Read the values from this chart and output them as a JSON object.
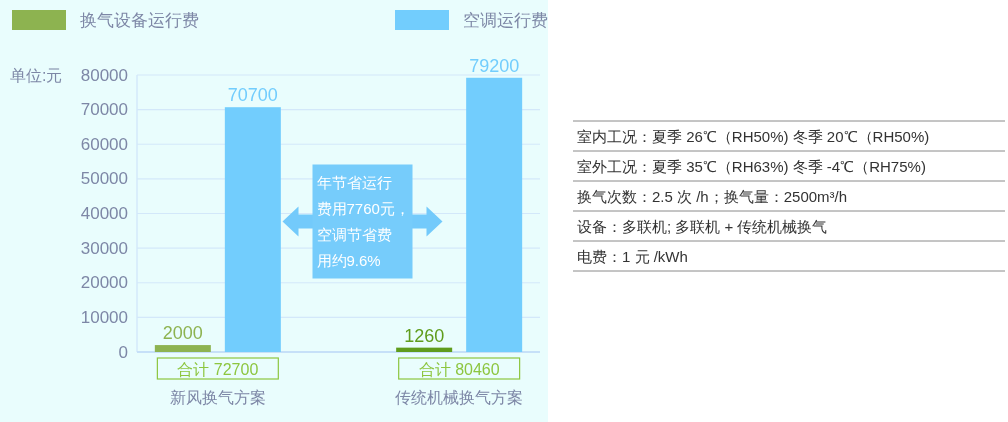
{
  "chart_data": [
    {
      "type": "bar",
      "ylabel": "单位:元",
      "categories": [
        "新风换气方案",
        "传统机械换气方案"
      ],
      "series": [
        {
          "name": "换气设备运行费",
          "color": "#8db350",
          "colors": [
            "#8db350",
            "#5f9c1c"
          ],
          "values": [
            2000,
            1260
          ]
        },
        {
          "name": "空调运行费",
          "color": "#72cdfd",
          "values": [
            70700,
            79200
          ]
        }
      ],
      "ylim": [
        0,
        80000
      ],
      "yticks": [
        0,
        10000,
        20000,
        30000,
        40000,
        50000,
        60000,
        70000,
        80000
      ],
      "grid": "y",
      "legend": "top",
      "data_labels": true,
      "totals": [
        "合计 72700",
        "合计 80460"
      ],
      "annotations": [
        "年节省运行费用7760元，空调节省费用约9.6%"
      ]
    },
    {
      "type": "other",
      "annotations": [
        "室内工况：夏季 26℃（RH50%) 冬季 20℃（RH50%)",
        "室外工况：夏季 35℃（RH63%) 冬季 -4℃（RH75%)",
        "换气次数：2.5 次 /h；换气量：2500m³/h",
        "设备：多联机; 多联机 + 传统机械换气",
        "电费：1 元 /kWh"
      ]
    }
  ]
}
